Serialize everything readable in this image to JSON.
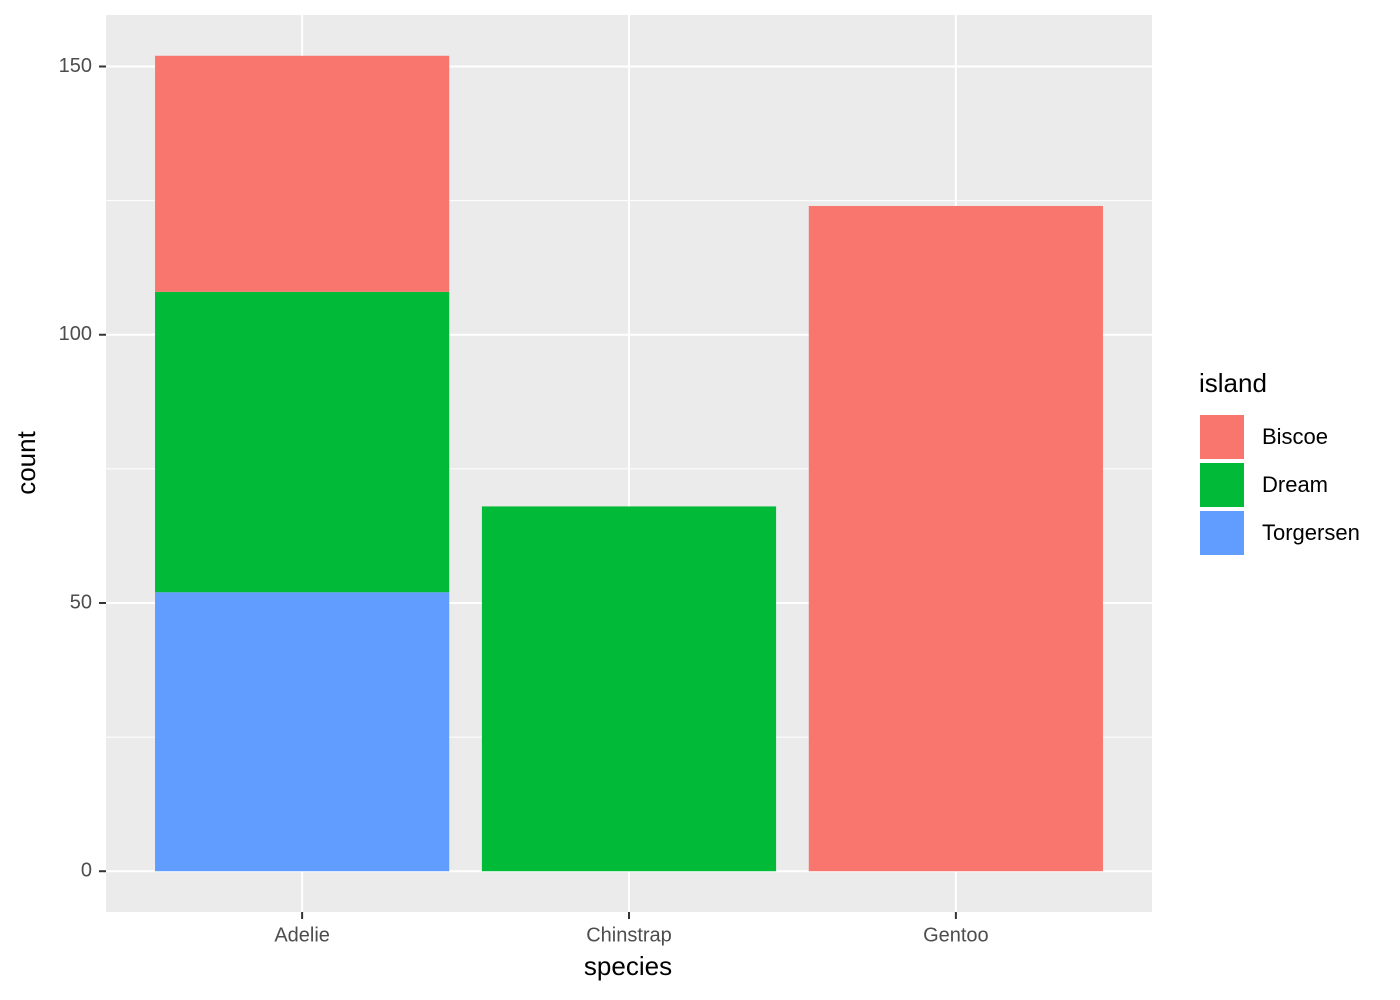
{
  "chart_data": {
    "type": "stacked_bar",
    "x_label": "species",
    "y_label": "count",
    "categories": [
      "Adelie",
      "Chinstrap",
      "Gentoo"
    ],
    "series": [
      {
        "name": "Biscoe",
        "color": "#f8766d",
        "values": [
          44,
          0,
          124
        ]
      },
      {
        "name": "Dream",
        "color": "#00ba38",
        "values": [
          56,
          68,
          0
        ]
      },
      {
        "name": "Torgersen",
        "color": "#619cff",
        "values": [
          52,
          0,
          0
        ]
      }
    ],
    "stack_order": [
      "Torgersen",
      "Dream",
      "Biscoe"
    ],
    "legend_title": "island",
    "legend_position": "right",
    "ylim": [
      -7.6,
      159.6
    ],
    "yticks": [
      0,
      50,
      100,
      150
    ],
    "y_minor_ticks": [
      25,
      75,
      125
    ],
    "grid": true
  }
}
